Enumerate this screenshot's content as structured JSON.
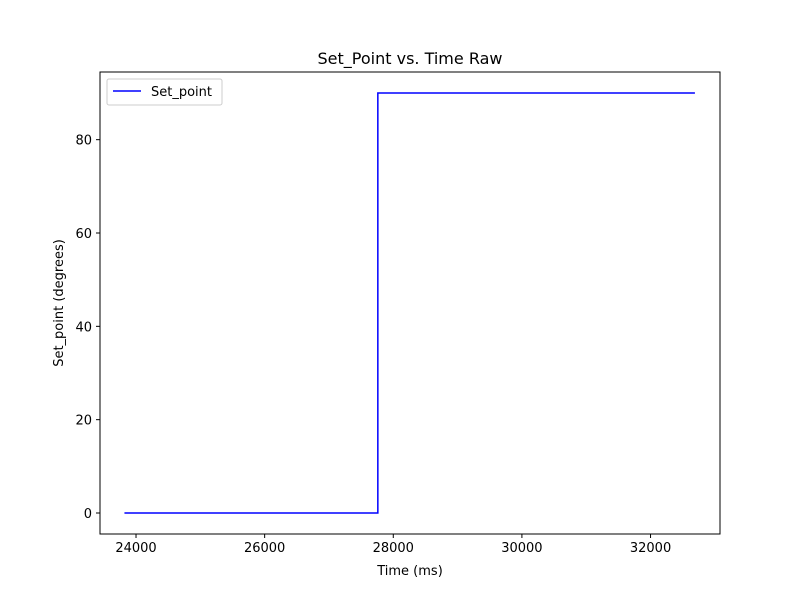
{
  "chart_data": {
    "type": "line",
    "title": "Set_Point vs. Time Raw",
    "xlabel": "Time (ms)",
    "ylabel": "Set_point (degrees)",
    "xlim": [
      23440,
      33080
    ],
    "ylim": [
      -4.5,
      94.5
    ],
    "xticks": [
      24000,
      26000,
      28000,
      30000,
      32000
    ],
    "yticks": [
      0,
      20,
      40,
      60,
      80
    ],
    "grid": false,
    "legend_position": "top-left",
    "series": [
      {
        "name": "Set_point",
        "color": "#0000ff",
        "x": [
          23820,
          27760,
          27760,
          32690
        ],
        "y": [
          0,
          0,
          90,
          90
        ]
      }
    ]
  }
}
